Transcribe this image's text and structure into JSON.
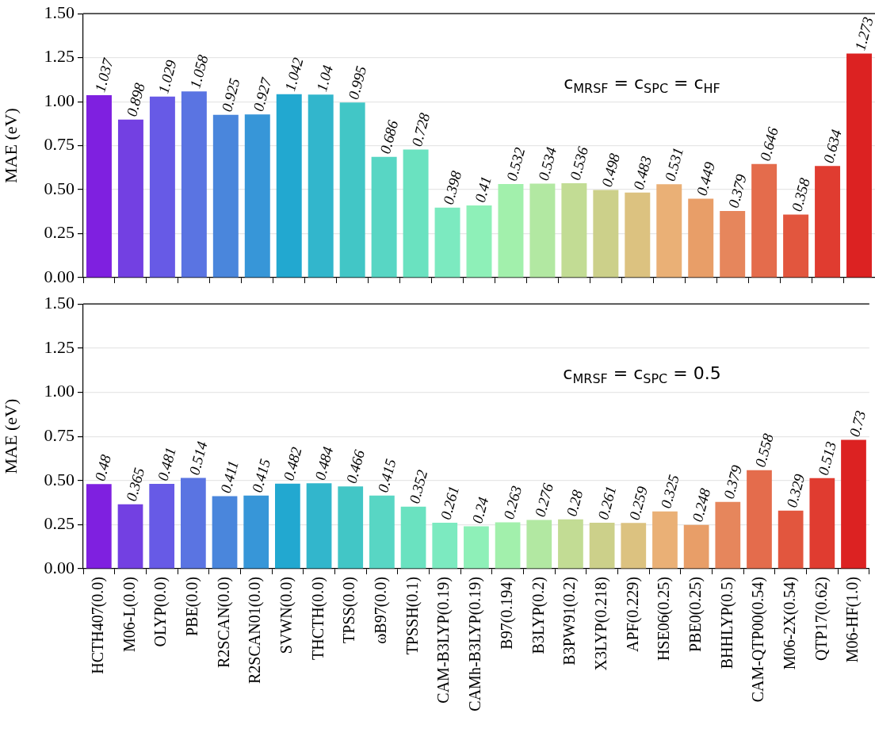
{
  "chart_data": [
    {
      "type": "bar",
      "ylabel": "MAE (eV)",
      "annotations": [
        "c$_{MRSF}$ = c$_{SPC}$ = c$_{HF}$"
      ],
      "categories": [
        null,
        null,
        null,
        null,
        null,
        null,
        null,
        null,
        null,
        null,
        null,
        null,
        null,
        null,
        null,
        null,
        null,
        null,
        null,
        null,
        null,
        null,
        null,
        null,
        null
      ],
      "values": [
        1.037,
        0.898,
        1.029,
        1.058,
        0.925,
        0.927,
        1.042,
        1.04,
        0.995,
        0.686,
        0.728,
        0.398,
        0.41,
        0.532,
        0.534,
        0.536,
        0.498,
        0.483,
        0.531,
        0.449,
        0.379,
        0.646,
        0.358,
        0.634,
        1.273
      ],
      "colors": [
        "#7f20e0",
        "#7340e2",
        "#675ae6",
        "#5a74e2",
        "#4a86dc",
        "#3796d8",
        "#22a8d0",
        "#32b6cc",
        "#42c6c6",
        "#58d6c4",
        "#6ae2c0",
        "#7ceac0",
        "#8ef0b8",
        "#a2f0ac",
        "#b2e8a2",
        "#c2dc94",
        "#ccd08a",
        "#dcc280",
        "#eab076",
        "#e89e68",
        "#e6865c",
        "#e46c4c",
        "#e2563e",
        "#e03c30",
        "#dc2222"
      ],
      "ylim": [
        0,
        1.5
      ],
      "yticks": [
        {
          "value": 0,
          "label": "0.00"
        },
        {
          "value": 0.25,
          "label": "0.25"
        },
        {
          "value": 0.5,
          "label": "0.50"
        },
        {
          "value": 0.75,
          "label": "0.75"
        },
        {
          "value": 1,
          "label": "1.00"
        },
        {
          "value": 1.25,
          "label": "1.25"
        },
        {
          "value": 1.5,
          "label": "1.50"
        }
      ],
      "grid": "y",
      "data_labels": true,
      "tick_labels": "y"
    },
    {
      "type": "bar",
      "ylabel": "MAE (eV)",
      "annotations": [
        "c$_{MRSF}$ = c$_{SPC}$ = 0.5"
      ],
      "categories": [
        "HCTH407(0.0)",
        "M06-L(0.0)",
        "OLYP(0.0)",
        "PBE(0.0)",
        "R2SCAN(0.0)",
        "R2SCAN01(0.0)",
        "SVWN(0.0)",
        "THCTH(0.0)",
        "TPSS(0.0)",
        "ωB97(0.0)",
        "TPSSH(0.1)",
        "CAM-B3LYP(0.19)",
        "CAMh-B3LYP(0.19)",
        "B97(0.194)",
        "B3LYP(0.2)",
        "B3PW91(0.2)",
        "X3LYP(0.218)",
        "APF(0.229)",
        "HSE06(0.25)",
        "PBE0(0.25)",
        "BHHLYP(0.5)",
        "CAM-QTP00(0.54)",
        "M06-2X(0.54)",
        "QTP17(0.62)",
        "M06-HF(1.0)"
      ],
      "values": [
        0.48,
        0.365,
        0.481,
        0.514,
        0.411,
        0.415,
        0.482,
        0.484,
        0.466,
        0.415,
        0.352,
        0.261,
        0.24,
        0.263,
        0.276,
        0.28,
        0.261,
        0.259,
        0.325,
        0.248,
        0.379,
        0.558,
        0.329,
        0.513,
        0.73
      ],
      "colors": [
        "#7f20e0",
        "#7340e2",
        "#675ae6",
        "#5a74e2",
        "#4a86dc",
        "#3796d8",
        "#22a8d0",
        "#32b6cc",
        "#42c6c6",
        "#58d6c4",
        "#6ae2c0",
        "#7ceac0",
        "#8ef0b8",
        "#a2f0ac",
        "#b2e8a2",
        "#c2dc94",
        "#ccd08a",
        "#dcc280",
        "#eab076",
        "#e89e68",
        "#e6865c",
        "#e46c4c",
        "#e2563e",
        "#e03c30",
        "#dc2222"
      ],
      "ylim": [
        0,
        1.5
      ],
      "yticks": [
        {
          "value": 0,
          "label": "0.00"
        },
        {
          "value": 0.25,
          "label": "0.25"
        },
        {
          "value": 0.5,
          "label": "0.50"
        },
        {
          "value": 0.75,
          "label": "0.75"
        },
        {
          "value": 1,
          "label": "1.00"
        },
        {
          "value": 1.25,
          "label": "1.25"
        },
        {
          "value": 1.5,
          "label": "1.50"
        }
      ],
      "grid": "y",
      "data_labels": true
    }
  ]
}
